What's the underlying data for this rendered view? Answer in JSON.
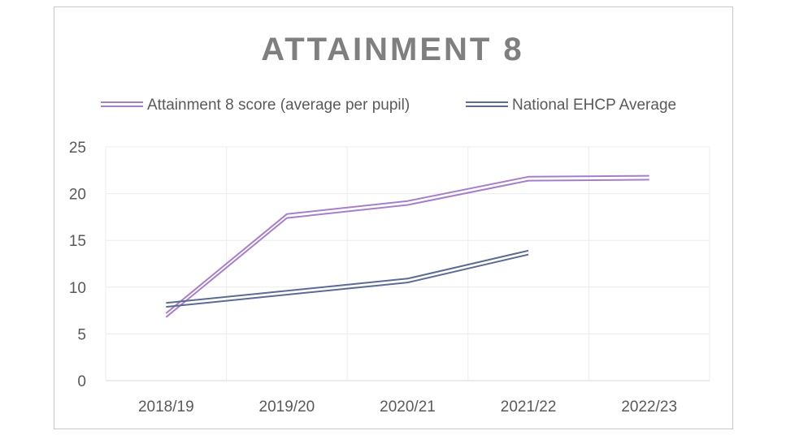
{
  "chart_data": {
    "type": "line",
    "title": "ATTAINMENT 8",
    "xlabel": "",
    "ylabel": "",
    "categories": [
      "2018/19",
      "2019/20",
      "2020/21",
      "2021/22",
      "2022/23"
    ],
    "ylim": [
      0,
      25
    ],
    "yticks": [
      0,
      5,
      10,
      15,
      20,
      25
    ],
    "grid": true,
    "legend_position": "top",
    "line_style": "double",
    "series": [
      {
        "name": "Attainment 8 score (average per pupil)",
        "color": "#a77fc9",
        "values": [
          7.0,
          17.6,
          19.0,
          21.6,
          21.7
        ]
      },
      {
        "name": "National EHCP Average",
        "color": "#5b6b92",
        "values": [
          8.1,
          null,
          10.7,
          13.7,
          null
        ]
      }
    ]
  }
}
